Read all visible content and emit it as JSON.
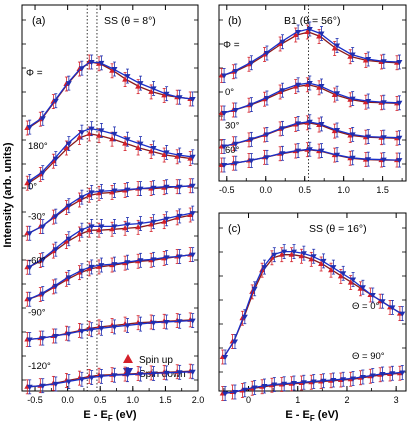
{
  "figure": {
    "ylabel": "Intensity (arb. units)",
    "xlabel_main": "E - E",
    "xlabel_sub": "F",
    "xlabel_unit": " (eV)"
  },
  "legend": {
    "items": [
      "Spin up",
      "Spin down"
    ]
  },
  "colors": {
    "up": "#d4202a",
    "down": "#1f2fb0",
    "fit_up": "#8b1a1a",
    "fit_down": "#1a2fc8"
  },
  "chart_data": [
    {
      "panel": "(a)",
      "title": "SS (θ = 8°)",
      "type": "line",
      "xlim": [
        -0.7,
        2.0
      ],
      "xticks": [
        -0.5,
        0,
        0.5,
        1,
        1.5,
        2
      ],
      "xticklabels": [
        "-0.5",
        "0.0",
        "0.5",
        "1.0",
        "1.5",
        "2.0"
      ],
      "vlines": [
        0.3,
        0.45
      ],
      "phi_header": "Φ =",
      "curves": [
        {
          "label": "",
          "x": [
            -0.6,
            -0.4,
            -0.2,
            0,
            0.2,
            0.35,
            0.5,
            0.7,
            0.9,
            1.1,
            1.3,
            1.5,
            1.7,
            1.9
          ],
          "up": [
            0.25,
            0.35,
            0.55,
            0.75,
            0.92,
            1.0,
            0.98,
            0.9,
            0.8,
            0.72,
            0.66,
            0.62,
            0.6,
            0.58
          ],
          "down": [
            0.26,
            0.36,
            0.56,
            0.76,
            0.93,
            1.0,
            0.99,
            0.92,
            0.84,
            0.76,
            0.7,
            0.64,
            0.6,
            0.58
          ]
        },
        {
          "label": "180°",
          "x": [
            -0.6,
            -0.4,
            -0.2,
            0,
            0.2,
            0.35,
            0.5,
            0.7,
            0.9,
            1.1,
            1.3,
            1.5,
            1.7,
            1.9
          ],
          "up": [
            0.1,
            0.2,
            0.35,
            0.5,
            0.62,
            0.66,
            0.64,
            0.6,
            0.55,
            0.5,
            0.46,
            0.42,
            0.4,
            0.38
          ],
          "down": [
            0.12,
            0.22,
            0.38,
            0.55,
            0.68,
            0.72,
            0.7,
            0.66,
            0.6,
            0.55,
            0.5,
            0.45,
            0.42,
            0.4
          ]
        },
        {
          "label": "0°",
          "x": [
            -0.6,
            -0.4,
            -0.2,
            0,
            0.2,
            0.35,
            0.5,
            0.7,
            0.9,
            1.1,
            1.3,
            1.5,
            1.7,
            1.9
          ],
          "up": [
            0.05,
            0.12,
            0.22,
            0.32,
            0.4,
            0.45,
            0.47,
            0.48,
            0.5,
            0.52,
            0.52,
            0.53,
            0.54,
            0.55
          ],
          "down": [
            0.05,
            0.12,
            0.23,
            0.34,
            0.43,
            0.48,
            0.49,
            0.5,
            0.51,
            0.52,
            0.53,
            0.54,
            0.54,
            0.55
          ]
        },
        {
          "label": "-30°",
          "x": [
            -0.6,
            -0.4,
            -0.2,
            0,
            0.2,
            0.35,
            0.5,
            0.7,
            0.9,
            1.1,
            1.3,
            1.5,
            1.7,
            1.9
          ],
          "up": [
            0.05,
            0.12,
            0.22,
            0.32,
            0.4,
            0.44,
            0.44,
            0.45,
            0.46,
            0.47,
            0.5,
            0.53,
            0.57,
            0.6
          ],
          "down": [
            0.05,
            0.13,
            0.24,
            0.35,
            0.44,
            0.48,
            0.48,
            0.48,
            0.5,
            0.51,
            0.53,
            0.56,
            0.59,
            0.62
          ]
        },
        {
          "label": "-60°",
          "x": [
            -0.6,
            -0.4,
            -0.2,
            0,
            0.2,
            0.35,
            0.5,
            0.7,
            0.9,
            1.1,
            1.3,
            1.5,
            1.7,
            1.9
          ],
          "up": [
            0.05,
            0.1,
            0.18,
            0.26,
            0.33,
            0.37,
            0.39,
            0.41,
            0.43,
            0.45,
            0.46,
            0.48,
            0.5,
            0.52
          ],
          "down": [
            0.05,
            0.11,
            0.19,
            0.28,
            0.35,
            0.39,
            0.41,
            0.42,
            0.44,
            0.46,
            0.47,
            0.49,
            0.5,
            0.52
          ]
        },
        {
          "label": "-90°",
          "x": [
            -0.6,
            -0.4,
            -0.2,
            0,
            0.2,
            0.35,
            0.5,
            0.7,
            0.9,
            1.1,
            1.3,
            1.5,
            1.7,
            1.9
          ],
          "up": [
            0.05,
            0.07,
            0.1,
            0.14,
            0.18,
            0.21,
            0.23,
            0.25,
            0.27,
            0.29,
            0.3,
            0.31,
            0.32,
            0.33
          ],
          "down": [
            0.05,
            0.07,
            0.1,
            0.13,
            0.17,
            0.19,
            0.21,
            0.23,
            0.25,
            0.27,
            0.29,
            0.3,
            0.31,
            0.32
          ]
        },
        {
          "label": "-120°",
          "x": [
            -0.6,
            -0.4,
            -0.2,
            0,
            0.2,
            0.35,
            0.5,
            0.7,
            0.9,
            1.1,
            1.3,
            1.5,
            1.7,
            1.9
          ],
          "up": [
            0.02,
            0.04,
            0.08,
            0.13,
            0.17,
            0.2,
            0.22,
            0.23,
            0.24,
            0.25,
            0.26,
            0.27,
            0.28,
            0.29
          ],
          "down": [
            0.02,
            0.04,
            0.07,
            0.11,
            0.15,
            0.18,
            0.2,
            0.22,
            0.23,
            0.24,
            0.25,
            0.26,
            0.27,
            0.28
          ]
        }
      ]
    },
    {
      "panel": "(b)",
      "title": "B1 (θ = 56°)",
      "type": "line",
      "xlim": [
        -0.6,
        1.8
      ],
      "xticks": [
        -0.5,
        0,
        0.5,
        1,
        1.5
      ],
      "xticklabels": [
        "-0.5",
        "0.0",
        "0.5",
        "1.0",
        "1.5"
      ],
      "vlines": [
        0.55
      ],
      "phi_header": "Φ =",
      "curves": [
        {
          "label": "",
          "x": [
            -0.55,
            -0.4,
            -0.2,
            0,
            0.2,
            0.4,
            0.55,
            0.7,
            0.9,
            1.1,
            1.3,
            1.5,
            1.7
          ],
          "up": [
            0.3,
            0.35,
            0.45,
            0.58,
            0.72,
            0.84,
            0.88,
            0.82,
            0.66,
            0.55,
            0.5,
            0.48,
            0.47
          ],
          "down": [
            0.3,
            0.36,
            0.47,
            0.6,
            0.75,
            0.88,
            0.92,
            0.86,
            0.7,
            0.58,
            0.52,
            0.49,
            0.48
          ]
        },
        {
          "label": "0°",
          "x": [
            -0.55,
            -0.4,
            -0.2,
            0,
            0.2,
            0.4,
            0.55,
            0.7,
            0.9,
            1.1,
            1.3,
            1.5,
            1.7
          ],
          "up": [
            0.2,
            0.25,
            0.33,
            0.43,
            0.55,
            0.64,
            0.67,
            0.62,
            0.5,
            0.42,
            0.38,
            0.37,
            0.36
          ],
          "down": [
            0.2,
            0.25,
            0.34,
            0.45,
            0.58,
            0.67,
            0.7,
            0.65,
            0.53,
            0.44,
            0.4,
            0.38,
            0.37
          ]
        },
        {
          "label": "30°",
          "x": [
            -0.55,
            -0.4,
            -0.2,
            0,
            0.2,
            0.4,
            0.55,
            0.7,
            0.9,
            1.1,
            1.3,
            1.5,
            1.7
          ],
          "up": [
            0.1,
            0.15,
            0.22,
            0.31,
            0.42,
            0.5,
            0.53,
            0.49,
            0.38,
            0.3,
            0.27,
            0.26,
            0.25
          ],
          "down": [
            0.1,
            0.15,
            0.23,
            0.32,
            0.43,
            0.52,
            0.55,
            0.51,
            0.4,
            0.32,
            0.28,
            0.27,
            0.26
          ]
        },
        {
          "label": "60°",
          "x": [
            -0.55,
            -0.4,
            -0.2,
            0,
            0.2,
            0.4,
            0.55,
            0.7,
            0.9,
            1.1,
            1.3,
            1.5,
            1.7
          ],
          "up": [
            0.0,
            0.04,
            0.1,
            0.17,
            0.25,
            0.31,
            0.34,
            0.31,
            0.22,
            0.15,
            0.12,
            0.11,
            0.11
          ],
          "down": [
            0.0,
            0.04,
            0.1,
            0.17,
            0.26,
            0.32,
            0.35,
            0.32,
            0.23,
            0.16,
            0.13,
            0.12,
            0.11
          ]
        }
      ]
    },
    {
      "panel": "(c)",
      "title": "SS (θ = 16°)",
      "type": "line",
      "xlim": [
        -0.6,
        3.2
      ],
      "xticks": [
        0,
        1,
        2,
        3
      ],
      "xticklabels": [
        "0",
        "1",
        "2",
        "3"
      ],
      "vlines": [],
      "curves": [
        {
          "label": "Θ = 0°",
          "x": [
            -0.5,
            -0.3,
            -0.1,
            0.1,
            0.3,
            0.5,
            0.7,
            0.9,
            1.1,
            1.3,
            1.5,
            1.7,
            1.9,
            2.1,
            2.3,
            2.5,
            2.7,
            2.9,
            3.1
          ],
          "up": [
            0.2,
            0.3,
            0.45,
            0.62,
            0.76,
            0.84,
            0.86,
            0.86,
            0.85,
            0.83,
            0.8,
            0.76,
            0.72,
            0.68,
            0.64,
            0.6,
            0.56,
            0.52,
            0.48
          ],
          "down": [
            0.2,
            0.3,
            0.46,
            0.64,
            0.78,
            0.86,
            0.88,
            0.88,
            0.87,
            0.85,
            0.82,
            0.78,
            0.74,
            0.7,
            0.65,
            0.6,
            0.56,
            0.52,
            0.48
          ]
        },
        {
          "label": "Θ = 90°",
          "x": [
            -0.5,
            -0.3,
            -0.1,
            0.1,
            0.3,
            0.5,
            0.7,
            0.9,
            1.1,
            1.3,
            1.5,
            1.7,
            1.9,
            2.1,
            2.3,
            2.5,
            2.7,
            2.9,
            3.1
          ],
          "up": [
            0.06,
            0.08,
            0.1,
            0.13,
            0.15,
            0.17,
            0.18,
            0.19,
            0.2,
            0.21,
            0.22,
            0.23,
            0.24,
            0.25,
            0.27,
            0.29,
            0.31,
            0.32,
            0.33
          ],
          "down": [
            0.06,
            0.08,
            0.11,
            0.14,
            0.16,
            0.18,
            0.19,
            0.2,
            0.21,
            0.22,
            0.23,
            0.24,
            0.25,
            0.26,
            0.28,
            0.3,
            0.32,
            0.33,
            0.34
          ]
        }
      ]
    }
  ]
}
